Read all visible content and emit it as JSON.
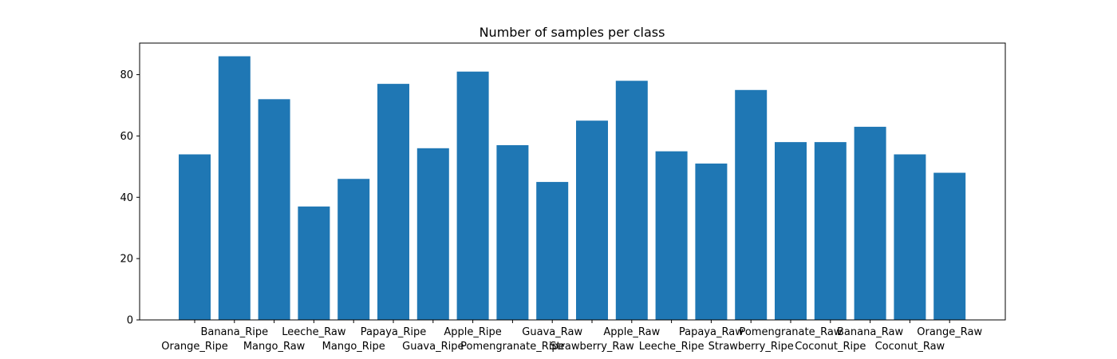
{
  "chart_data": {
    "type": "bar",
    "title": "Number of samples per class",
    "xlabel": "",
    "ylabel": "",
    "categories": [
      "Orange_Ripe",
      "Banana_Ripe",
      "Mango_Raw",
      "Leeche_Raw",
      "Mango_Ripe",
      "Papaya_Ripe",
      "Guava_Ripe",
      "Apple_Ripe",
      "Pomengranate_Ripe",
      "Guava_Raw",
      "Strawberry_Raw",
      "Apple_Raw",
      "Leeche_Ripe",
      "Papaya_Raw",
      "Strawberry_Ripe",
      "Pomengranate_Raw",
      "Coconut_Ripe",
      "Banana_Raw",
      "Coconut_Raw",
      "Orange_Raw"
    ],
    "values": [
      54,
      86,
      72,
      37,
      46,
      77,
      56,
      81,
      57,
      45,
      65,
      78,
      55,
      51,
      75,
      58,
      58,
      63,
      54,
      48
    ],
    "ylim": [
      0,
      90.3
    ],
    "yticks": [
      0,
      20,
      40,
      60,
      80
    ],
    "grid": false,
    "bar_color": "#1f77b4"
  }
}
